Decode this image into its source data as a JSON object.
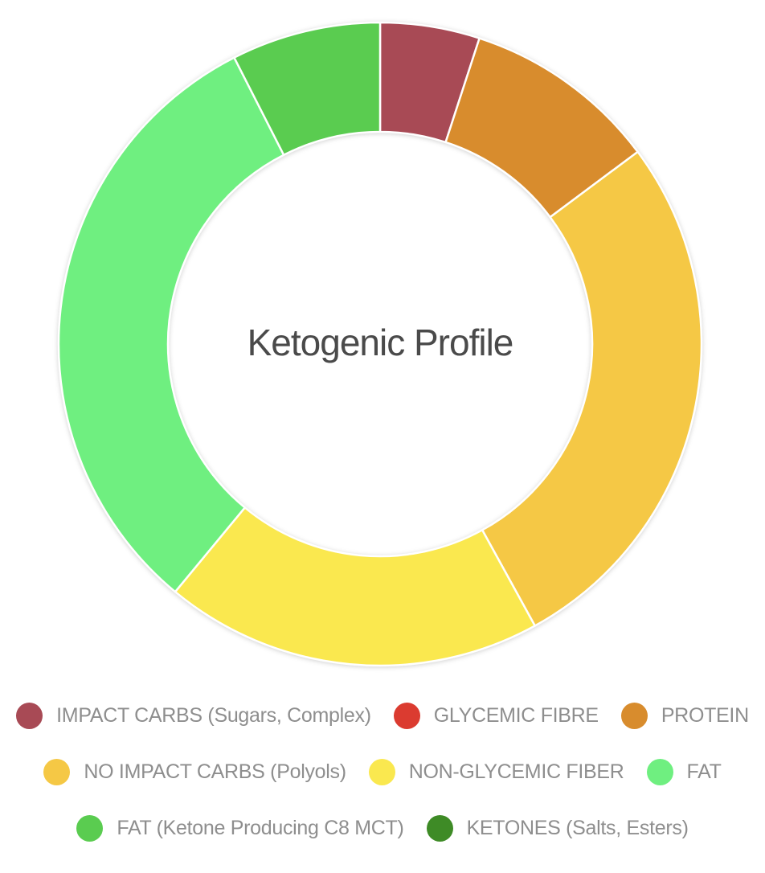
{
  "chart_data": {
    "type": "donut",
    "title": "Ketogenic Profile",
    "start_angle_deg": 0,
    "direction": "clockwise",
    "inner_radius_ratio": 0.66,
    "legend_position": "bottom",
    "grid": false,
    "segments": [
      {
        "id": "impact-carbs",
        "label": "IMPACT CARBS (Sugars, Complex)",
        "value_pct": 5.0,
        "color": "#A84A55"
      },
      {
        "id": "glycemic-fibre",
        "label": "GLYCEMIC FIBRE",
        "value_pct": 0,
        "color": "#DB3B30"
      },
      {
        "id": "protein",
        "label": "PROTEIN",
        "value_pct": 9.8,
        "color": "#D88C2D"
      },
      {
        "id": "no-impact-carbs",
        "label": "NO IMPACT CARBS (Polyols)",
        "value_pct": 27.2,
        "color": "#F5C845"
      },
      {
        "id": "non-glycemic-fiber",
        "label": "NON-GLYCEMIC FIBER",
        "value_pct": 19.0,
        "color": "#FAE84F"
      },
      {
        "id": "fat",
        "label": "FAT",
        "value_pct": 31.5,
        "color": "#6FEF80"
      },
      {
        "id": "fat-c8-mct",
        "label": "FAT (Ketone Producing C8 MCT)",
        "value_pct": 7.5,
        "color": "#5ACC50"
      },
      {
        "id": "ketones",
        "label": "KETONES (Salts, Esters)",
        "value_pct": 0,
        "color": "#3E8B26"
      }
    ]
  },
  "colors": {
    "background": "#FFFFFF",
    "title_text": "#4A4A4A",
    "legend_text": "#8E8E8E",
    "segment_separator": "#FFFFFF"
  }
}
